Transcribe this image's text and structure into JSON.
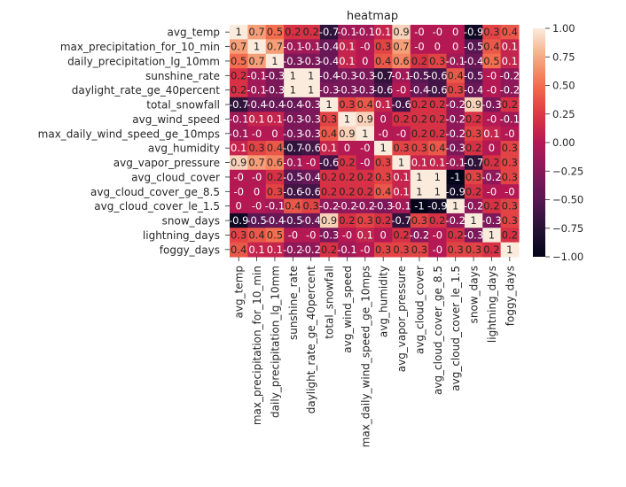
{
  "chart_data": {
    "type": "heatmap",
    "title": "heatmap",
    "variables": [
      "avg_temp",
      "max_precipitation_for_10_min",
      "daily_precipitation_lg_10mm",
      "sunshine_rate",
      "daylight_rate_ge_40percent",
      "total_snowfall",
      "avg_wind_speed",
      "max_daily_wind_speed_ge_10mps",
      "avg_humidity",
      "avg_vapor_pressure",
      "avg_cloud_cover",
      "avg_cloud_cover_ge_8.5",
      "avg_cloud_cover_le_1.5",
      "snow_days",
      "lightning_days",
      "foggy_days"
    ],
    "values": [
      [
        1,
        0.7,
        0.5,
        0.2,
        0.2,
        -0.7,
        -0.1,
        -0.1,
        0.1,
        0.9,
        0,
        0,
        0,
        -0.9,
        0.3,
        0.4
      ],
      [
        0.7,
        1,
        0.7,
        -0.1,
        -0.1,
        -0.4,
        0.1,
        0,
        0.3,
        0.7,
        0,
        0,
        0,
        -0.5,
        0.4,
        0.1
      ],
      [
        0.5,
        0.7,
        1,
        -0.3,
        -0.3,
        -0.4,
        0.1,
        0,
        0.4,
        0.6,
        0.2,
        0.3,
        -0.1,
        -0.4,
        0.5,
        0.1
      ],
      [
        0.2,
        -0.1,
        -0.3,
        1,
        1,
        -0.4,
        -0.3,
        -0.3,
        -0.7,
        -0.1,
        -0.5,
        -0.6,
        0.4,
        -0.5,
        0,
        -0.2
      ],
      [
        0.2,
        -0.1,
        -0.3,
        1,
        1,
        -0.3,
        -0.3,
        -0.3,
        -0.6,
        0,
        -0.4,
        -0.6,
        0.3,
        -0.4,
        0,
        -0.2
      ],
      [
        -0.7,
        -0.4,
        -0.4,
        -0.4,
        -0.3,
        1,
        0.3,
        0.4,
        0.1,
        -0.6,
        0.2,
        0.2,
        -0.2,
        0.9,
        -0.3,
        0.2
      ],
      [
        -0.1,
        0.1,
        0.1,
        -0.3,
        -0.3,
        0.3,
        1,
        0.9,
        0,
        0.2,
        0.2,
        0.2,
        -0.2,
        0.2,
        0,
        -0.1
      ],
      [
        -0.1,
        0,
        0,
        -0.3,
        -0.3,
        0.4,
        0.9,
        1,
        0,
        0,
        0.2,
        0.2,
        -0.2,
        0.3,
        0.1,
        0
      ],
      [
        0.1,
        0.3,
        0.4,
        -0.7,
        -0.6,
        0.1,
        0,
        0,
        1,
        0.3,
        0.3,
        0.4,
        -0.3,
        0.2,
        0,
        0.3
      ],
      [
        0.9,
        0.7,
        0.6,
        -0.1,
        0,
        -0.6,
        0.2,
        0,
        0.3,
        1,
        0.1,
        0.1,
        -0.1,
        -0.7,
        0.2,
        0.3
      ],
      [
        0,
        0,
        0.2,
        -0.5,
        -0.4,
        0.2,
        0.2,
        0.2,
        0.3,
        0.1,
        1,
        1,
        -1,
        0.3,
        -0.2,
        0.3
      ],
      [
        0,
        0,
        0.3,
        -0.6,
        -0.6,
        0.2,
        0.2,
        0.2,
        0.4,
        0.1,
        1,
        1,
        -0.9,
        0.2,
        0,
        0
      ],
      [
        0,
        0,
        -0.1,
        0.4,
        0.3,
        -0.2,
        -0.2,
        -0.2,
        -0.3,
        -0.1,
        -1,
        -0.9,
        1,
        -0.2,
        0.2,
        0.3
      ],
      [
        -0.9,
        -0.5,
        -0.4,
        -0.5,
        -0.4,
        0.9,
        0.2,
        0.3,
        0.2,
        -0.7,
        0.3,
        0.2,
        -0.2,
        1,
        -0.3,
        0.3
      ],
      [
        0.3,
        0.4,
        0.5,
        0,
        0,
        -0.3,
        0,
        0.1,
        0,
        0.2,
        -0.2,
        0,
        0.2,
        -0.3,
        1,
        0.2
      ],
      [
        0.4,
        0.1,
        0.1,
        -0.2,
        -0.2,
        0.2,
        -0.1,
        0,
        0.3,
        0.3,
        0.3,
        0,
        0.3,
        0.3,
        0.2,
        1
      ]
    ],
    "vmin": -1,
    "vmax": 1,
    "colormap": "rocket",
    "colorbar_ticks": [
      "1.00",
      "0.75",
      "0.50",
      "0.25",
      "0.00",
      "−0.25",
      "−0.50",
      "−0.75",
      "−1.00"
    ],
    "colorbar_tick_values": [
      1,
      0.75,
      0.5,
      0.25,
      0,
      -0.25,
      -0.5,
      -0.75,
      -1
    ]
  }
}
